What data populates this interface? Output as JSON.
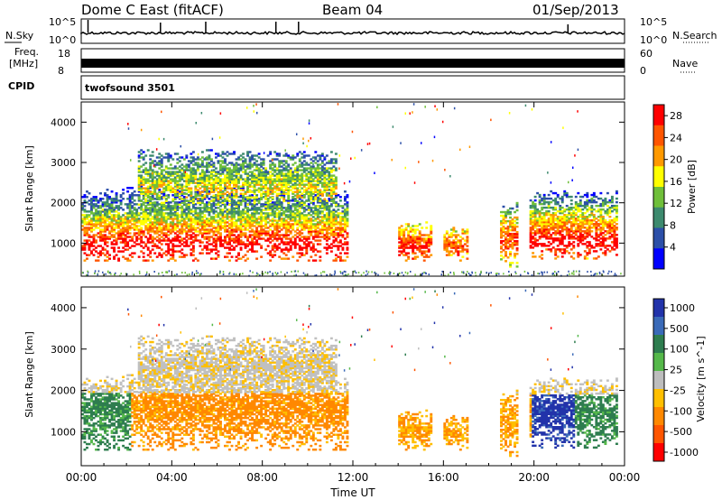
{
  "header": {
    "station_title": "Dome C East (fitACF)",
    "beam": "Beam 04",
    "date": "01/Sep/2013"
  },
  "noise_panel": {
    "left_label": "N.Sky",
    "right_label": "N.Search",
    "left_ticks": [
      "10^5",
      "10^0"
    ],
    "right_ticks": [
      "10^5",
      "10^0"
    ]
  },
  "freq_panel": {
    "left_label_1": "Freq.",
    "left_label_2": "[MHz]",
    "right_label": "Nave",
    "left_ticks": [
      "18",
      "8"
    ],
    "right_ticks": [
      "60",
      "0"
    ]
  },
  "cpid_panel": {
    "label": "CPID",
    "program": "twofsound 3501"
  },
  "colors": {
    "power_scale": [
      "#0000ff",
      "#2c4fa8",
      "#3d8a6e",
      "#6fbf3a",
      "#ffff00",
      "#ff9900",
      "#ff5500",
      "#ff0000"
    ],
    "velocity_scale": [
      "#2233aa",
      "#3a6ab8",
      "#2e7d4f",
      "#55b84a",
      "#bdbdbd",
      "#ffbf00",
      "#ff8800",
      "#ff5500",
      "#ff0000"
    ],
    "ground_scatter": "#c0c0c0"
  },
  "chart_data": [
    {
      "type": "heatmap",
      "name": "power",
      "ylabel": "Slant Range [km]",
      "ylim": [
        180,
        4500
      ],
      "yticks": [
        "1000",
        "2000",
        "3000",
        "4000"
      ],
      "xlim_hours": [
        0,
        24
      ],
      "colorbar_label": "Power [dB]",
      "colorbar_ticks": [
        "4",
        "8",
        "12",
        "16",
        "20",
        "24",
        "28"
      ],
      "colorbar_range": [
        0,
        30
      ]
    },
    {
      "type": "heatmap",
      "name": "velocity",
      "ylabel": "Slant Range [km]",
      "ylim": [
        180,
        4500
      ],
      "yticks": [
        "1000",
        "2000",
        "3000",
        "4000"
      ],
      "xlim_hours": [
        0,
        24
      ],
      "xticks": [
        "00:00",
        "04:00",
        "08:00",
        "12:00",
        "16:00",
        "20:00",
        "00:00"
      ],
      "xlabel": "Time UT",
      "colorbar_label": "Velocity [m s^-1]",
      "colorbar_ticks": [
        "1000",
        "500",
        "100",
        "25",
        "-25",
        "-100",
        "-500",
        "-1000"
      ]
    }
  ],
  "scatter_regions": [
    {
      "t0": 0.0,
      "t1": 11.7,
      "r0": 550,
      "r1": 2500,
      "peak": 900,
      "gain": 1.0
    },
    {
      "t0": 2.5,
      "t1": 11.2,
      "r0": 1800,
      "r1": 3300,
      "peak": 2300,
      "gain": 0.55
    },
    {
      "t0": 14.0,
      "t1": 15.4,
      "r0": 550,
      "r1": 1500,
      "peak": 850,
      "gain": 0.9
    },
    {
      "t0": 16.0,
      "t1": 17.1,
      "r0": 550,
      "r1": 1400,
      "peak": 850,
      "gain": 0.8
    },
    {
      "t0": 18.5,
      "t1": 19.3,
      "r0": 400,
      "r1": 2000,
      "peak": 1000,
      "gain": 0.85
    },
    {
      "t0": 19.8,
      "t1": 23.7,
      "r0": 600,
      "r1": 2300,
      "peak": 1000,
      "gain": 1.0
    }
  ]
}
